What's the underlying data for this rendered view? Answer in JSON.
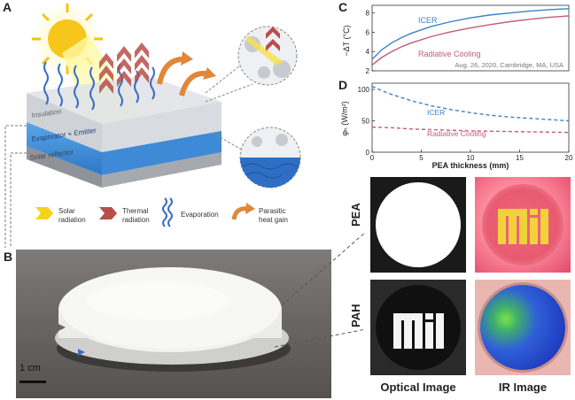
{
  "panels": {
    "a": "A",
    "b": "B",
    "c": "C",
    "d": "D"
  },
  "panel_a": {
    "layers": {
      "insulation": "Insulation",
      "evaporator": "Evaporator + Emitter",
      "reflector": "Solar reflector"
    },
    "legend": {
      "solar": [
        "Solar",
        "radiation"
      ],
      "thermal": [
        "Thermal",
        "radiation"
      ],
      "evaporation": [
        "Evaporation"
      ],
      "parasitic": [
        "Parasitic",
        "heat gain"
      ]
    },
    "colors": {
      "solar": "#f6d21a",
      "thermal": "#b84f4a",
      "evap": "#3a6fc4",
      "parasitic": "#e0873a"
    }
  },
  "panel_b": {
    "scale": "1 cm"
  },
  "chart_data": [
    {
      "type": "line",
      "panel": "C",
      "xlabel": "",
      "ylabel": "−ΔT (°C)",
      "xlim": [
        0,
        20
      ],
      "ylim": [
        2,
        8.8
      ],
      "yticks": [
        "2",
        "4",
        "6",
        "8"
      ],
      "annotation": "Aug. 26, 2020, Cambridge, MA, USA",
      "series": [
        {
          "name": "ICER",
          "color": "#3b82c8",
          "style": "solid",
          "x": [
            0,
            1,
            2,
            3,
            4,
            6,
            8,
            10,
            12,
            14,
            16,
            18,
            20
          ],
          "y": [
            3.2,
            4.2,
            4.9,
            5.45,
            5.9,
            6.6,
            7.1,
            7.5,
            7.8,
            8.0,
            8.2,
            8.35,
            8.45
          ]
        },
        {
          "name": "Radiative Cooling",
          "color": "#c85a78",
          "style": "solid",
          "x": [
            0,
            1,
            2,
            3,
            4,
            6,
            8,
            10,
            12,
            14,
            16,
            18,
            20
          ],
          "y": [
            2.6,
            3.4,
            4.0,
            4.5,
            4.9,
            5.55,
            6.05,
            6.45,
            6.8,
            7.1,
            7.35,
            7.55,
            7.7
          ]
        }
      ]
    },
    {
      "type": "line",
      "panel": "D",
      "xlabel": "PEA thickness (mm)",
      "ylabel": "φₕ (W/m²)",
      "xlim": [
        0,
        20
      ],
      "ylim": [
        0,
        110
      ],
      "xticks": [
        "0",
        "5",
        "10",
        "15",
        "20"
      ],
      "yticks": [
        "0",
        "50",
        "100"
      ],
      "series": [
        {
          "name": "ICER",
          "color": "#3b82c8",
          "style": "dashed",
          "x": [
            0,
            1,
            2,
            4,
            6,
            8,
            10,
            12,
            14,
            16,
            18,
            20
          ],
          "y": [
            105,
            98,
            92,
            82,
            74,
            68,
            63,
            59,
            56,
            54,
            52,
            50
          ]
        },
        {
          "name": "Radiative Cooling",
          "color": "#c85a78",
          "style": "dashed",
          "x": [
            0,
            2,
            4,
            6,
            8,
            10,
            12,
            14,
            16,
            18,
            20
          ],
          "y": [
            40,
            39,
            37,
            36,
            35,
            34,
            33.5,
            33,
            32.5,
            32,
            31.5
          ]
        }
      ]
    }
  ],
  "panel_e": {
    "row_labels": [
      "PEA",
      "PAH"
    ],
    "col_labels": [
      "Optical Image",
      "IR Image"
    ],
    "logo_text": "MIT"
  }
}
